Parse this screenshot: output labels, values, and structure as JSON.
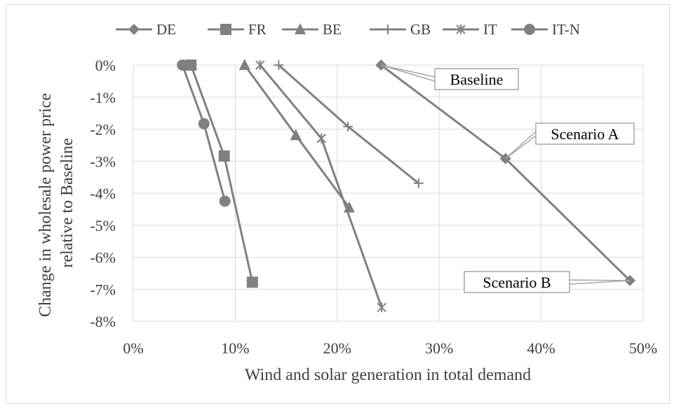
{
  "chart_data": {
    "type": "scatter",
    "xlabel": "Wind and solar generation in total demand",
    "ylabel_lines": [
      "Change in wholesale power price",
      "relative to Baseline"
    ],
    "xlim": [
      0,
      0.5
    ],
    "ylim": [
      -0.08,
      0
    ],
    "x_ticks": [
      0,
      0.1,
      0.2,
      0.3,
      0.4,
      0.5
    ],
    "x_tick_labels": [
      "0%",
      "10%",
      "20%",
      "30%",
      "40%",
      "50%"
    ],
    "y_ticks": [
      0,
      -0.01,
      -0.02,
      -0.03,
      -0.04,
      -0.05,
      -0.06,
      -0.07,
      -0.08
    ],
    "y_tick_labels": [
      "0%",
      "-1%",
      "-2%",
      "-3%",
      "-4%",
      "-5%",
      "-6%",
      "-7%",
      "-8%"
    ],
    "grid": true,
    "legend_position": "top",
    "line_color": "#808080",
    "series": [
      {
        "name": "DE",
        "marker": "diamond",
        "points": [
          [
            0.243,
            0.0
          ],
          [
            0.365,
            -0.0292
          ],
          [
            0.487,
            -0.0673
          ]
        ]
      },
      {
        "name": "FR",
        "marker": "square",
        "points": [
          [
            0.0566,
            0.0
          ],
          [
            0.0892,
            -0.0284
          ],
          [
            0.1168,
            -0.0678
          ]
        ]
      },
      {
        "name": "BE",
        "marker": "triangle",
        "points": [
          [
            0.1092,
            0.0
          ],
          [
            0.1594,
            -0.0219
          ],
          [
            0.2118,
            -0.0445
          ]
        ]
      },
      {
        "name": "GB",
        "marker": "plus",
        "points": [
          [
            0.1426,
            0.0
          ],
          [
            0.2106,
            -0.0192
          ],
          [
            0.2798,
            -0.0369
          ]
        ]
      },
      {
        "name": "IT",
        "marker": "star",
        "points": [
          [
            0.1244,
            0.0
          ],
          [
            0.1845,
            -0.0229
          ],
          [
            0.2436,
            -0.0757
          ]
        ]
      },
      {
        "name": "IT-N",
        "marker": "circle",
        "points": [
          [
            0.0482,
            0.0
          ],
          [
            0.0693,
            -0.0183
          ],
          [
            0.0899,
            -0.0425
          ]
        ]
      }
    ],
    "annotations": [
      {
        "text": "Baseline",
        "series": "DE",
        "point": 0
      },
      {
        "text": "Scenario A",
        "series": "DE",
        "point": 1
      },
      {
        "text": "Scenario B",
        "series": "DE",
        "point": 2
      }
    ]
  }
}
